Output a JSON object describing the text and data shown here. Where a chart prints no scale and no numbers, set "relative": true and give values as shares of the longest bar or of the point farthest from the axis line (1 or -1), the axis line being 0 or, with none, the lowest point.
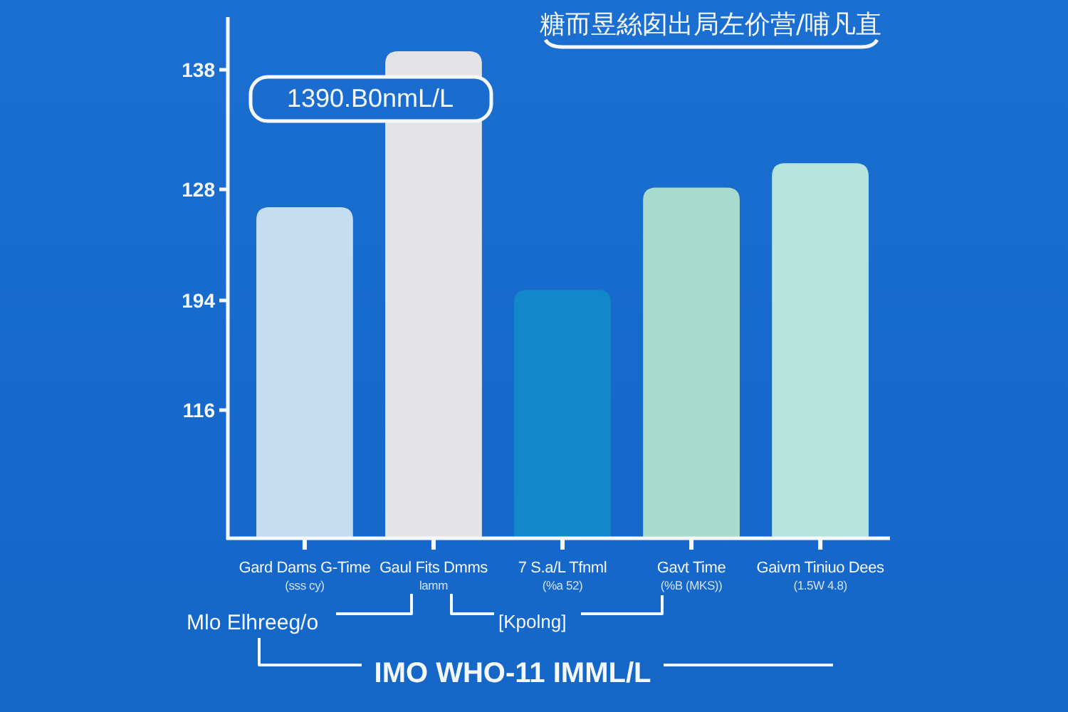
{
  "chart_data": {
    "type": "bar",
    "title": "糖而昱絲囱出局左价营/哺凡直",
    "categories": [
      "Gard Dams G-Time\n(sss cy)",
      "Gaul Fits Dmms\nlamm",
      "7 S.a/L Tfnml\n(%a 52)",
      "Gavt Time\n(%B (MKS))",
      "Gaivm Tiniuo Dees\n(1.5W 4.8)"
    ],
    "values": [
      0.68,
      1,
      0.51,
      0.72,
      0.77
    ],
    "colors": [
      "#c4ddf1",
      "#e4e4e7",
      "#1388c9",
      "#a6dbcd",
      "#b4e4db"
    ],
    "relative": true,
    "annotations": [
      "138",
      "128",
      "194",
      "116",
      "1390.B0nmL/L",
      "Mlo Elhreeg/o",
      "[Kpolng]",
      "IMO WHO-11 IMML/L"
    ]
  }
}
